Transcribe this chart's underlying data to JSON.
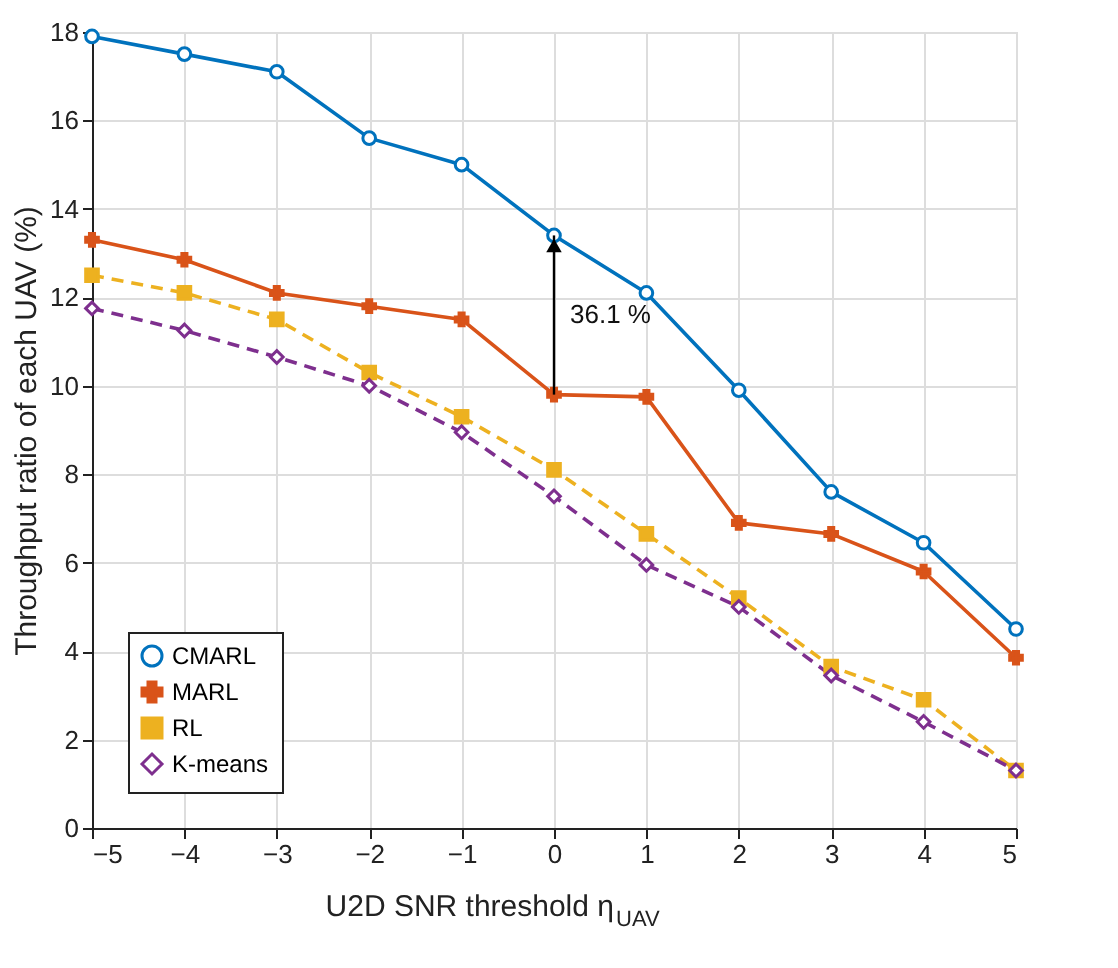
{
  "chart_data": {
    "type": "line",
    "xlabel": "U2D SNR threshold η$_{UAV}$",
    "ylabel": "Throughput ratio of each UAV (%)",
    "x": [
      -5,
      -4,
      -3,
      -2,
      -1,
      0,
      1,
      2,
      3,
      4,
      5
    ],
    "series": [
      {
        "name": "CMARL",
        "color": "#0072bd",
        "marker": "circle",
        "line_style": "solid",
        "values": [
          17.9,
          17.5,
          17.1,
          15.6,
          15.0,
          13.4,
          12.1,
          9.9,
          7.6,
          6.45,
          4.5
        ]
      },
      {
        "name": "MARL",
        "color": "#d95319",
        "marker": "cross",
        "line_style": "solid",
        "values": [
          13.3,
          12.85,
          12.1,
          11.8,
          11.5,
          9.8,
          9.75,
          6.9,
          6.65,
          5.8,
          3.85
        ]
      },
      {
        "name": "RL",
        "color": "#edb120",
        "marker": "square",
        "line_style": "dashed",
        "values": [
          12.5,
          12.1,
          11.5,
          10.3,
          9.3,
          8.1,
          6.65,
          5.2,
          3.65,
          2.9,
          1.3
        ]
      },
      {
        "name": "K-means",
        "color": "#7e2f8e",
        "marker": "diamond",
        "line_style": "dashed",
        "values": [
          11.75,
          11.25,
          10.65,
          10.0,
          8.95,
          7.5,
          5.95,
          5.0,
          3.45,
          2.4,
          1.3
        ]
      }
    ],
    "xlim": [
      -5,
      5
    ],
    "xticks": [
      -5,
      -4,
      -3,
      -2,
      -1,
      0,
      1,
      2,
      3,
      4,
      5
    ],
    "ylim": [
      0,
      18
    ],
    "yticks": [
      0,
      2,
      4,
      6,
      8,
      10,
      12,
      14,
      16,
      18
    ],
    "annotations": [
      "36.1 %"
    ],
    "grid": true,
    "legend": "bottom left"
  }
}
